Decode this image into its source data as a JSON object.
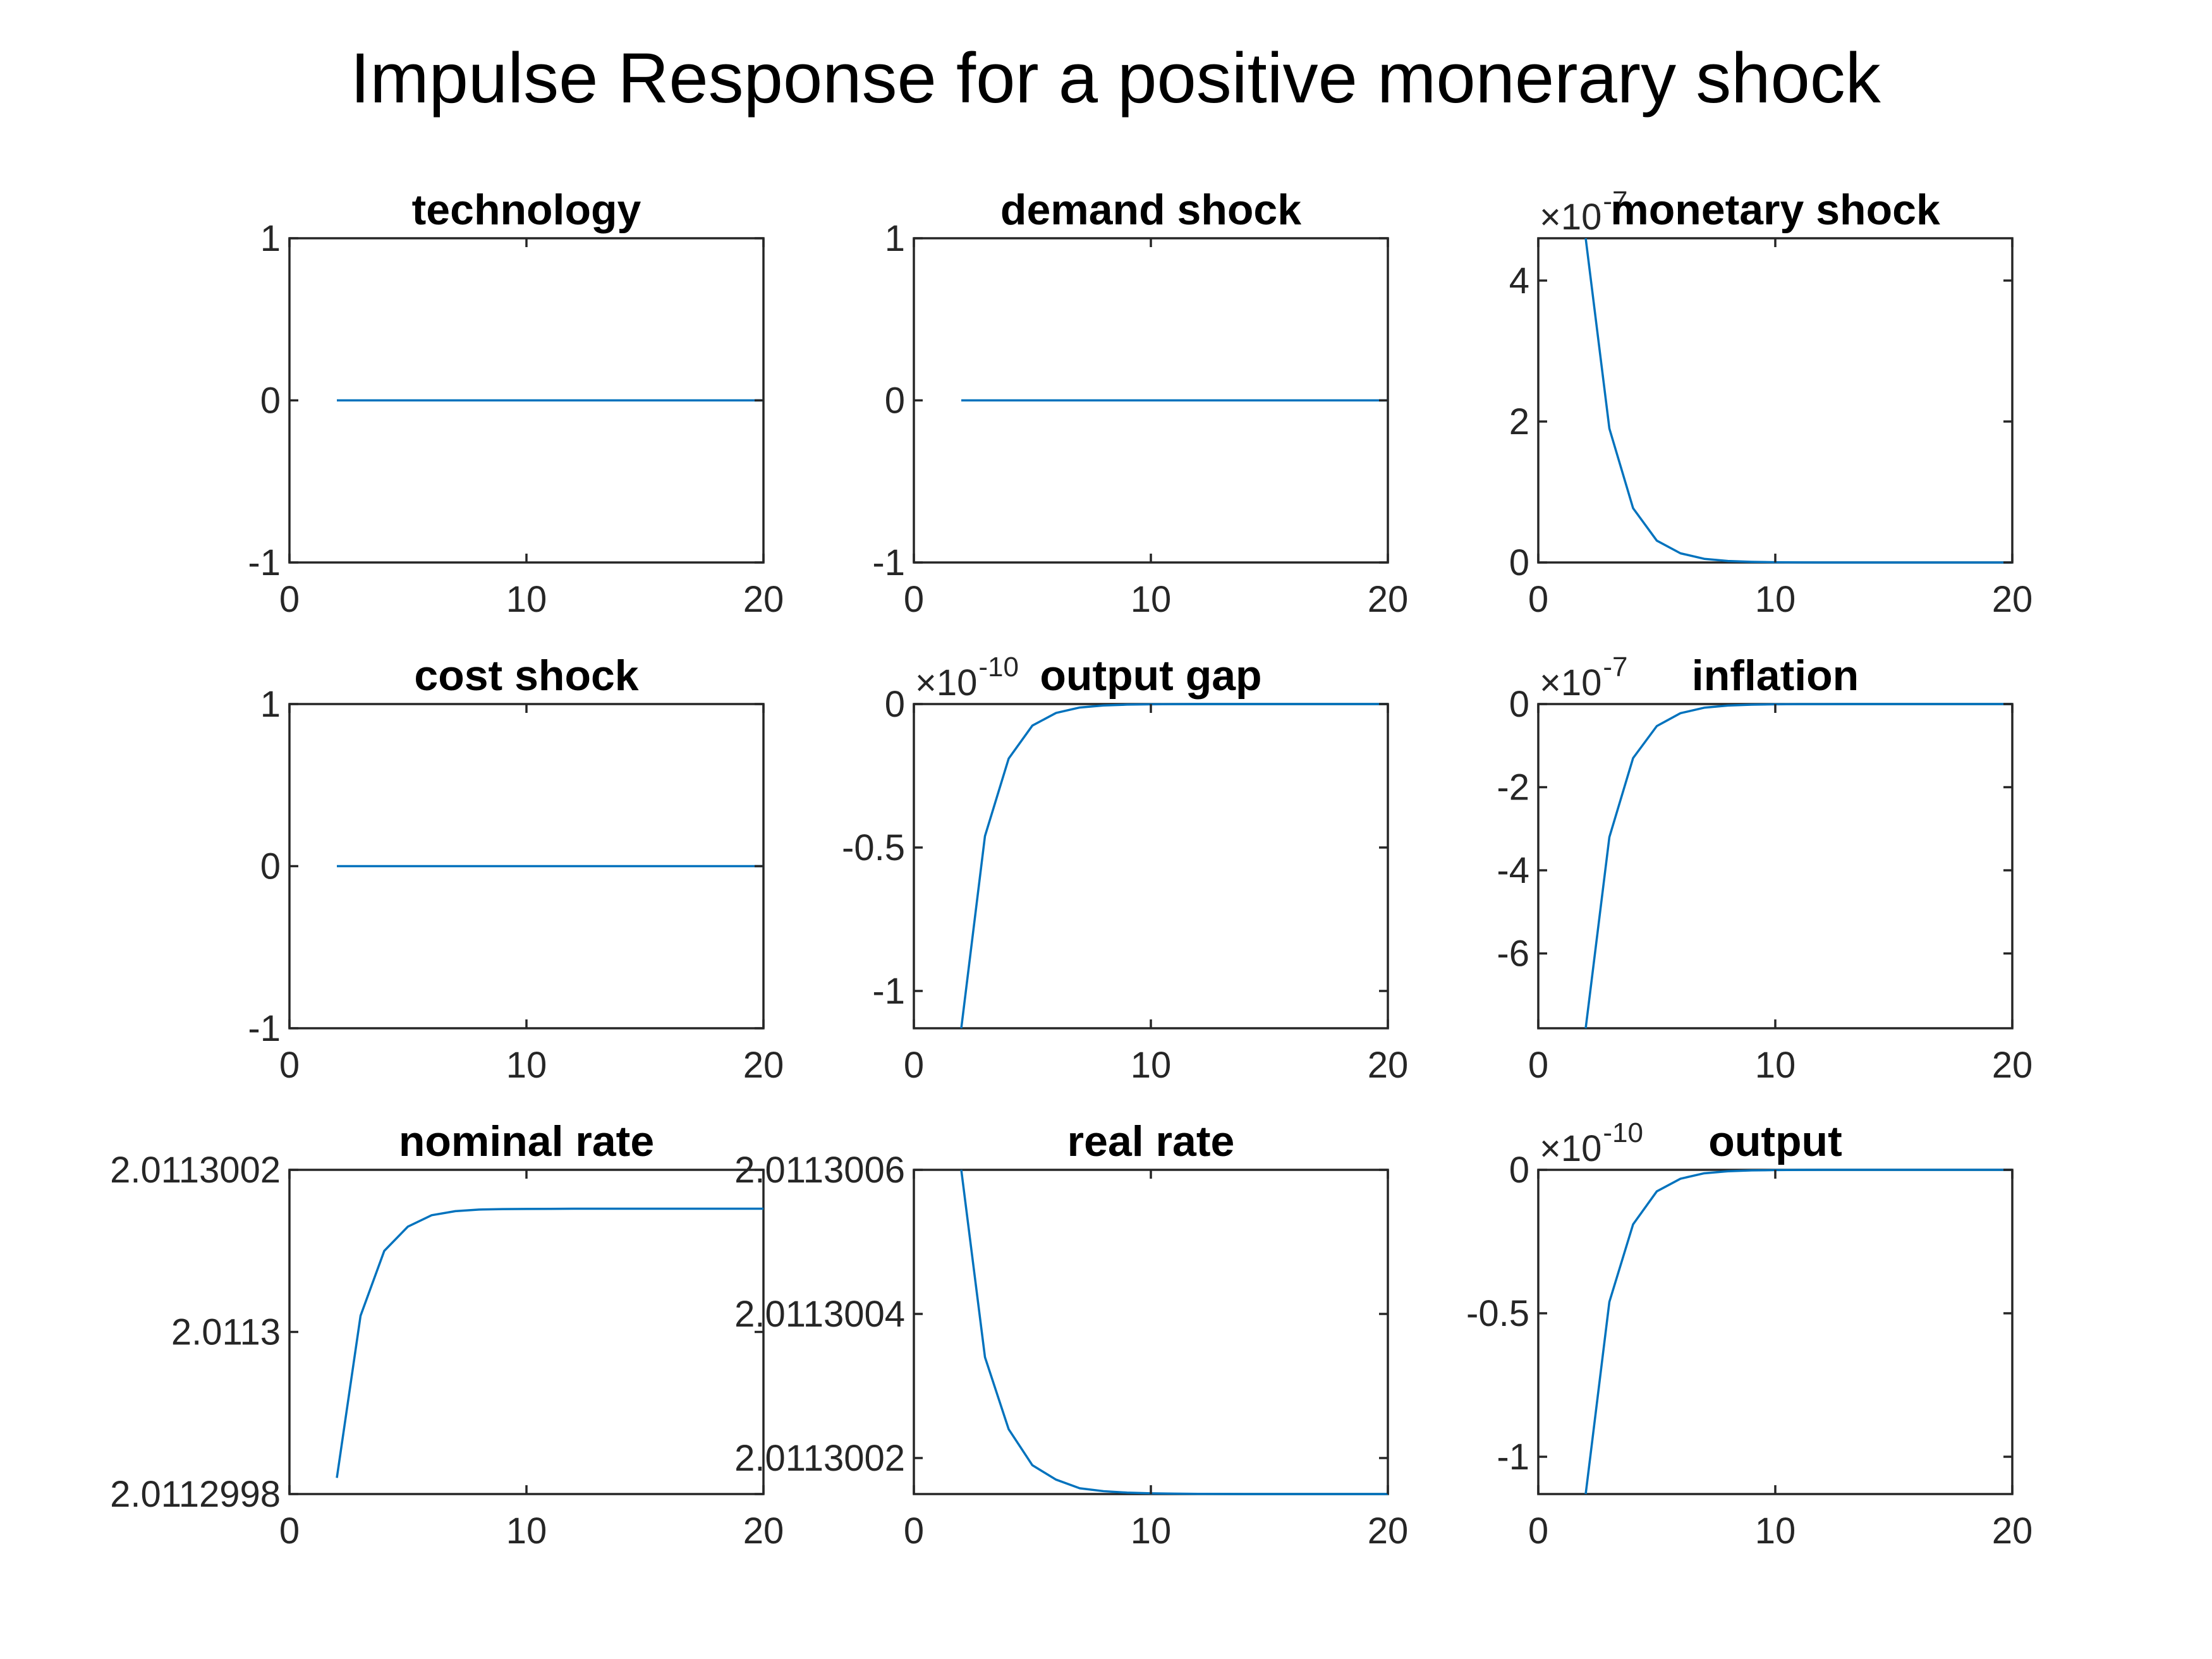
{
  "figure": {
    "title": "Impulse Response for a positive monerary shock",
    "line_color": "#0072BD",
    "axis_color": "#262626",
    "background": "#ffffff"
  },
  "chart_data": [
    {
      "type": "line",
      "title": "technology",
      "xlabel": "",
      "ylabel": "",
      "xlim": [
        0,
        20
      ],
      "ylim": [
        -1,
        1
      ],
      "xticks": [
        0,
        10,
        20
      ],
      "xtick_labels": [
        "0",
        "10",
        "20"
      ],
      "yticks": [
        -1,
        0,
        1
      ],
      "ytick_labels": [
        "-1",
        "0",
        "1"
      ],
      "exponent_label": null,
      "series": [
        {
          "x": [
            2,
            3,
            4,
            5,
            6,
            7,
            8,
            9,
            10,
            11,
            12,
            13,
            14,
            15,
            16,
            17,
            18,
            19,
            20
          ],
          "y": [
            0,
            0,
            0,
            0,
            0,
            0,
            0,
            0,
            0,
            0,
            0,
            0,
            0,
            0,
            0,
            0,
            0,
            0,
            0
          ]
        }
      ]
    },
    {
      "type": "line",
      "title": "demand shock",
      "xlabel": "",
      "ylabel": "",
      "xlim": [
        0,
        20
      ],
      "ylim": [
        -1,
        1
      ],
      "xticks": [
        0,
        10,
        20
      ],
      "xtick_labels": [
        "0",
        "10",
        "20"
      ],
      "yticks": [
        -1,
        0,
        1
      ],
      "ytick_labels": [
        "-1",
        "0",
        "1"
      ],
      "exponent_label": null,
      "series": [
        {
          "x": [
            2,
            3,
            4,
            5,
            6,
            7,
            8,
            9,
            10,
            11,
            12,
            13,
            14,
            15,
            16,
            17,
            18,
            19,
            20
          ],
          "y": [
            0,
            0,
            0,
            0,
            0,
            0,
            0,
            0,
            0,
            0,
            0,
            0,
            0,
            0,
            0,
            0,
            0,
            0,
            0
          ]
        }
      ]
    },
    {
      "type": "line",
      "title": "monetary shock",
      "xlabel": "",
      "ylabel": "",
      "xlim": [
        0,
        20
      ],
      "ylim": [
        0,
        4.6e-07
      ],
      "xticks": [
        0,
        10,
        20
      ],
      "xtick_labels": [
        "0",
        "10",
        "20"
      ],
      "yticks": [
        0,
        2e-07,
        4e-07
      ],
      "ytick_labels": [
        "0",
        "2",
        "4"
      ],
      "exponent_label": {
        "base": "×10",
        "power": "-7"
      },
      "series": [
        {
          "x": [
            2,
            3,
            4,
            5,
            6,
            7,
            8,
            9,
            10,
            11,
            12,
            13,
            14,
            15,
            16,
            17,
            18,
            19,
            20
          ],
          "y": [
            4.6e-07,
            1.9e-07,
            7.7e-08,
            3.1e-08,
            1.3e-08,
            5.2e-09,
            2.1e-09,
            8.6e-10,
            3.5e-10,
            1.4e-10,
            5.8e-11,
            2.4e-11,
            1e-11,
            4e-12,
            1.6e-12,
            7e-13,
            3e-13,
            1e-13,
            5e-14
          ]
        }
      ]
    },
    {
      "type": "line",
      "title": "cost shock",
      "xlabel": "",
      "ylabel": "",
      "xlim": [
        0,
        20
      ],
      "ylim": [
        -1,
        1
      ],
      "xticks": [
        0,
        10,
        20
      ],
      "xtick_labels": [
        "0",
        "10",
        "20"
      ],
      "yticks": [
        -1,
        0,
        1
      ],
      "ytick_labels": [
        "-1",
        "0",
        "1"
      ],
      "exponent_label": null,
      "series": [
        {
          "x": [
            2,
            3,
            4,
            5,
            6,
            7,
            8,
            9,
            10,
            11,
            12,
            13,
            14,
            15,
            16,
            17,
            18,
            19,
            20
          ],
          "y": [
            0,
            0,
            0,
            0,
            0,
            0,
            0,
            0,
            0,
            0,
            0,
            0,
            0,
            0,
            0,
            0,
            0,
            0,
            0
          ]
        }
      ]
    },
    {
      "type": "line",
      "title": "output gap",
      "xlabel": "",
      "ylabel": "",
      "xlim": [
        0,
        20
      ],
      "ylim": [
        -1.13e-10,
        0
      ],
      "xticks": [
        0,
        10,
        20
      ],
      "xtick_labels": [
        "0",
        "10",
        "20"
      ],
      "yticks": [
        -1e-10,
        -5e-11,
        0
      ],
      "ytick_labels": [
        "-1",
        "-0.5",
        "0"
      ],
      "exponent_label": {
        "base": "×10",
        "power": "-10"
      },
      "series": [
        {
          "x": [
            2,
            3,
            4,
            5,
            6,
            7,
            8,
            9,
            10,
            11,
            12,
            13,
            14,
            15,
            16,
            17,
            18,
            19,
            20
          ],
          "y": [
            -1.13e-10,
            -4.6e-11,
            -1.9e-11,
            -7.5e-12,
            -3.1e-12,
            -1.2e-12,
            -5e-13,
            -2e-13,
            -8e-14,
            -3e-14,
            -1.3e-14,
            -5e-15,
            -2e-15,
            -1e-15,
            0,
            0,
            0,
            0,
            0
          ]
        }
      ]
    },
    {
      "type": "line",
      "title": "inflation",
      "xlabel": "",
      "ylabel": "",
      "xlim": [
        0,
        20
      ],
      "ylim": [
        -7.8e-07,
        0
      ],
      "xticks": [
        0,
        10,
        20
      ],
      "xtick_labels": [
        "0",
        "10",
        "20"
      ],
      "yticks": [
        -6e-07,
        -4e-07,
        -2e-07,
        0
      ],
      "ytick_labels": [
        "-6",
        "-4",
        "-2",
        "0"
      ],
      "exponent_label": {
        "base": "×10",
        "power": "-7"
      },
      "series": [
        {
          "x": [
            2,
            3,
            4,
            5,
            6,
            7,
            8,
            9,
            10,
            11,
            12,
            13,
            14,
            15,
            16,
            17,
            18,
            19,
            20
          ],
          "y": [
            -7.8e-07,
            -3.2e-07,
            -1.3e-07,
            -5.3e-08,
            -2.2e-08,
            -8.8e-09,
            -3.6e-09,
            -1.5e-09,
            -6e-10,
            -2.4e-10,
            -1e-10,
            -4e-11,
            -1.6e-11,
            -7e-12,
            -3e-12,
            -1e-12,
            0,
            0,
            0
          ]
        }
      ]
    },
    {
      "type": "line",
      "title": "nominal rate",
      "xlabel": "",
      "ylabel": "",
      "xlim": [
        0,
        20
      ],
      "ylim": [
        2.0112998,
        2.0113002
      ],
      "xticks": [
        0,
        10,
        20
      ],
      "xtick_labels": [
        "0",
        "10",
        "20"
      ],
      "yticks": [
        2.0112998,
        2.0113,
        2.0113002
      ],
      "ytick_labels": [
        "2.0112998",
        "2.0113",
        "2.0113002"
      ],
      "exponent_label": null,
      "series": [
        {
          "x": [
            2,
            3,
            4,
            5,
            6,
            7,
            8,
            9,
            10,
            11,
            12,
            13,
            14,
            15,
            16,
            17,
            18,
            19,
            20
          ],
          "y": [
            2.01129982,
            2.01130002,
            2.0113001,
            2.01130013,
            2.011300144,
            2.011300149,
            2.011300151,
            2.0113001516,
            2.0113001518,
            2.0113001519,
            2.011300152,
            2.011300152,
            2.011300152,
            2.011300152,
            2.011300152,
            2.011300152,
            2.011300152,
            2.011300152,
            2.011300152
          ]
        }
      ]
    },
    {
      "type": "line",
      "title": "real rate",
      "xlabel": "",
      "ylabel": "",
      "xlim": [
        0,
        20
      ],
      "ylim": [
        2.01130015,
        2.0113006
      ],
      "xticks": [
        0,
        10,
        20
      ],
      "xtick_labels": [
        "0",
        "10",
        "20"
      ],
      "yticks": [
        2.0113002,
        2.0113004,
        2.0113006
      ],
      "ytick_labels": [
        "2.0113002",
        "2.0113004",
        "2.0113006"
      ],
      "exponent_label": null,
      "series": [
        {
          "x": [
            2,
            3,
            4,
            5,
            6,
            7,
            8,
            9,
            10,
            11,
            12,
            13,
            14,
            15,
            16,
            17,
            18,
            19,
            20
          ],
          "y": [
            2.0113006,
            2.01130034,
            2.01130024,
            2.01130019,
            2.01130017,
            2.011300158,
            2.011300154,
            2.011300152,
            2.011300151,
            2.0113001505,
            2.0113001502,
            2.0113001501,
            2.01130015,
            2.01130015,
            2.01130015,
            2.01130015,
            2.01130015,
            2.01130015,
            2.01130015
          ]
        }
      ]
    },
    {
      "type": "line",
      "title": "output",
      "xlabel": "",
      "ylabel": "",
      "xlim": [
        0,
        20
      ],
      "ylim": [
        -1.13e-10,
        0
      ],
      "xticks": [
        0,
        10,
        20
      ],
      "xtick_labels": [
        "0",
        "10",
        "20"
      ],
      "yticks": [
        -1e-10,
        -5e-11,
        0
      ],
      "ytick_labels": [
        "-1",
        "-0.5",
        "0"
      ],
      "exponent_label": {
        "base": "×10",
        "power": "-10"
      },
      "series": [
        {
          "x": [
            2,
            3,
            4,
            5,
            6,
            7,
            8,
            9,
            10,
            11,
            12,
            13,
            14,
            15,
            16,
            17,
            18,
            19,
            20
          ],
          "y": [
            -1.13e-10,
            -4.6e-11,
            -1.9e-11,
            -7.5e-12,
            -3.1e-12,
            -1.2e-12,
            -5e-13,
            -2e-13,
            -8e-14,
            -3e-14,
            -1.3e-14,
            -5e-15,
            -2e-15,
            -1e-15,
            0,
            0,
            0,
            0,
            0
          ]
        }
      ]
    }
  ]
}
